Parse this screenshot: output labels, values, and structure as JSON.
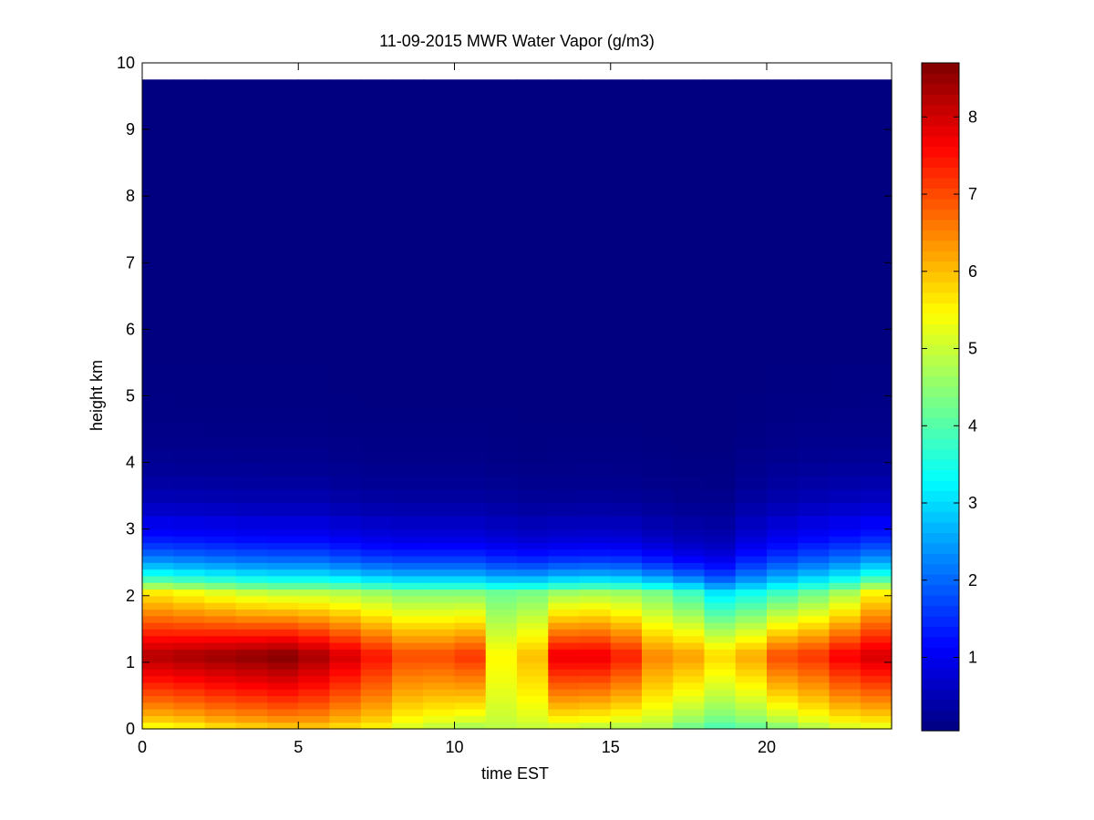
{
  "chart_data": {
    "type": "heatmap",
    "title": "11-09-2015 MWR Water Vapor (g/m3)",
    "xlabel": "time EST",
    "ylabel": "height km",
    "xlim": [
      0,
      24
    ],
    "ylim": [
      0,
      10
    ],
    "xticks": [
      0,
      5,
      10,
      15,
      20
    ],
    "yticks": [
      0,
      1,
      2,
      3,
      4,
      5,
      6,
      7,
      8,
      9,
      10
    ],
    "colormap": "jet",
    "clim": [
      0.05,
      8.7
    ],
    "colorbar_ticks": [
      1,
      2,
      3,
      4,
      5,
      6,
      7,
      8
    ],
    "x_step_hours": 1,
    "x_centers": [
      0,
      1,
      2,
      3,
      4,
      5,
      6,
      7,
      8,
      9,
      10,
      11,
      12,
      13,
      14,
      15,
      16,
      17,
      18,
      19,
      20,
      21,
      22,
      23
    ],
    "heights_km": [
      0.0,
      0.1,
      0.2,
      0.3,
      0.4,
      0.5,
      0.6,
      0.7,
      0.8,
      0.9,
      1.0,
      1.1,
      1.2,
      1.3,
      1.4,
      1.5,
      1.6,
      1.7,
      1.8,
      1.9,
      2.0,
      2.1,
      2.2,
      2.3,
      2.4,
      2.5,
      2.6,
      2.7,
      2.8,
      2.9,
      3.0,
      3.2,
      3.4,
      3.6,
      3.8,
      4.0,
      4.2,
      4.4,
      4.6,
      4.8,
      5.0,
      5.5,
      6.0,
      6.5,
      7.0,
      7.5,
      8.0,
      8.5,
      9.0,
      9.75
    ],
    "surface_g_m3": [
      5.5,
      5.6,
      5.8,
      5.9,
      6.0,
      6.0,
      5.8,
      5.6,
      5.2,
      5.0,
      4.8,
      4.9,
      5.0,
      5.1,
      5.0,
      4.9,
      4.8,
      4.3,
      4.0,
      4.2,
      4.5,
      4.9,
      5.2,
      5.3
    ],
    "peak_g_m3": [
      8.3,
      8.4,
      8.5,
      8.6,
      8.7,
      8.4,
      8.0,
      7.5,
      7.0,
      7.0,
      7.2,
      5.5,
      6.0,
      7.8,
      7.8,
      7.4,
      6.5,
      6.3,
      5.8,
      6.2,
      7.0,
      7.2,
      7.7,
      8.0
    ],
    "peak_height_km": 1.05,
    "mid_2km_g_m3": [
      5.6,
      5.4,
      5.2,
      5.0,
      4.9,
      4.9,
      4.8,
      4.6,
      4.4,
      4.4,
      4.4,
      4.2,
      4.3,
      4.6,
      4.7,
      4.6,
      4.3,
      3.8,
      3.1,
      3.4,
      3.8,
      4.2,
      4.7,
      5.5
    ],
    "scale_height_km": [
      0.55,
      0.55,
      0.55,
      0.55,
      0.55,
      0.55,
      0.52,
      0.5,
      0.5,
      0.5,
      0.5,
      0.48,
      0.45,
      0.45,
      0.45,
      0.45,
      0.42,
      0.4,
      0.42,
      0.55,
      0.6,
      0.62,
      0.62,
      0.6
    ],
    "background_g_m3": 0.05
  }
}
